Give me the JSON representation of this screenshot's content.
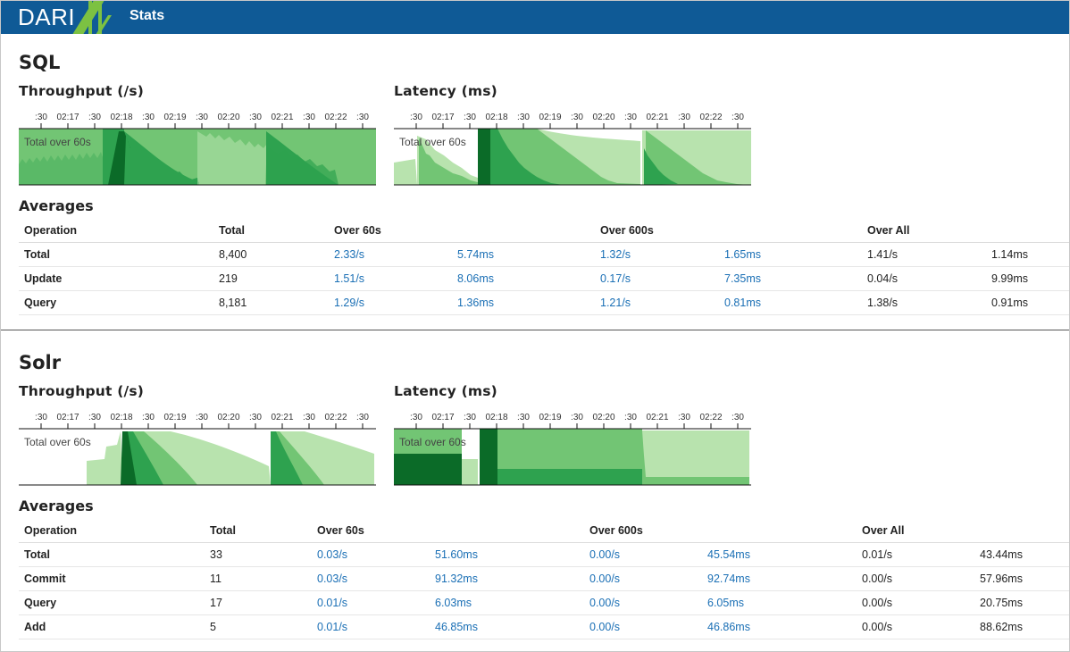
{
  "app": {
    "brand": "DARI",
    "nav_label": "Stats"
  },
  "colors": {
    "header": "#0f5a96",
    "logo_accent": "#7cc142",
    "green1": "#b8e3ae",
    "green2": "#72c574",
    "green3": "#2ea24f",
    "green4": "#0b6b28",
    "link": "#1a6fb5"
  },
  "ticks": [
    ":30",
    "02:17",
    ":30",
    "02:18",
    ":30",
    "02:19",
    ":30",
    "02:20",
    ":30",
    "02:21",
    ":30",
    "02:22",
    ":30"
  ],
  "sections": [
    {
      "title": "SQL",
      "throughput_title": "Throughput (/s)",
      "latency_title": "Latency (ms)",
      "throughput_label": "Total over 60s",
      "latency_label": "Total over 60s",
      "averages_title": "Averages",
      "columns": [
        "Operation",
        "Total",
        "Over 60s",
        "",
        "Over 600s",
        "",
        "Over All",
        ""
      ],
      "rows": [
        {
          "op": "Total",
          "total": "8,400",
          "r60": "2.33/s",
          "l60": "5.74ms",
          "r600": "1.32/s",
          "l600": "1.65ms",
          "rall": "1.41/s",
          "lall": "1.14ms"
        },
        {
          "op": "Update",
          "total": "219",
          "r60": "1.51/s",
          "l60": "8.06ms",
          "r600": "0.17/s",
          "l600": "7.35ms",
          "rall": "0.04/s",
          "lall": "9.99ms"
        },
        {
          "op": "Query",
          "total": "8,181",
          "r60": "1.29/s",
          "l60": "1.36ms",
          "r600": "1.21/s",
          "l600": "0.81ms",
          "rall": "1.38/s",
          "lall": "0.91ms"
        }
      ]
    },
    {
      "title": "Solr",
      "throughput_title": "Throughput (/s)",
      "latency_title": "Latency (ms)",
      "throughput_label": "Total over 60s",
      "latency_label": "Total over 60s",
      "averages_title": "Averages",
      "columns": [
        "Operation",
        "Total",
        "Over 60s",
        "",
        "Over 600s",
        "",
        "Over All",
        ""
      ],
      "rows": [
        {
          "op": "Total",
          "total": "33",
          "r60": "0.03/s",
          "l60": "51.60ms",
          "r600": "0.00/s",
          "l600": "45.54ms",
          "rall": "0.01/s",
          "lall": "43.44ms"
        },
        {
          "op": "Commit",
          "total": "11",
          "r60": "0.03/s",
          "l60": "91.32ms",
          "r600": "0.00/s",
          "l600": "92.74ms",
          "rall": "0.00/s",
          "lall": "57.96ms"
        },
        {
          "op": "Query",
          "total": "17",
          "r60": "0.01/s",
          "l60": "6.03ms",
          "r600": "0.00/s",
          "l600": "6.05ms",
          "rall": "0.00/s",
          "lall": "20.75ms"
        },
        {
          "op": "Add",
          "total": "5",
          "r60": "0.01/s",
          "l60": "46.85ms",
          "r600": "0.00/s",
          "l600": "46.86ms",
          "rall": "0.00/s",
          "lall": "88.62ms"
        }
      ]
    }
  ]
}
